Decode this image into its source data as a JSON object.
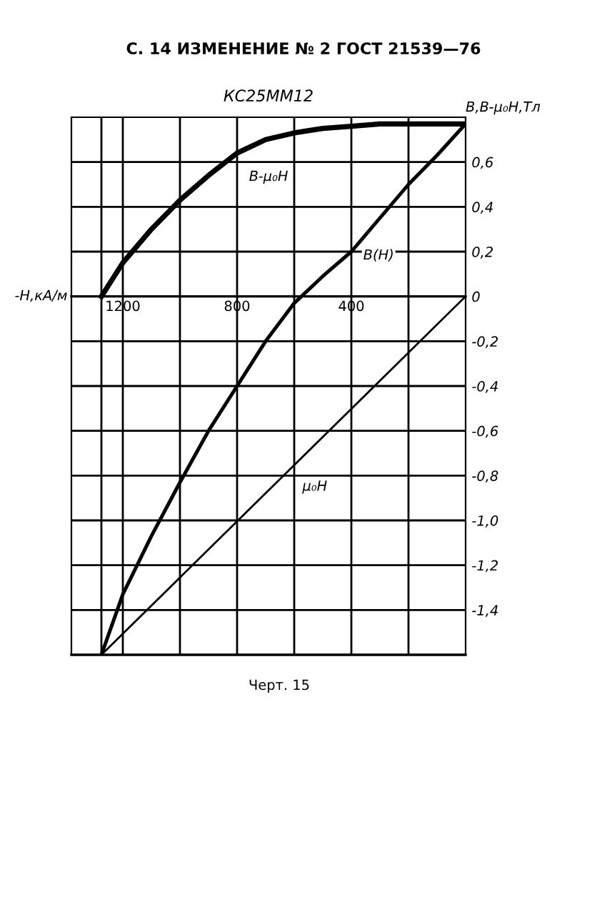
{
  "chart_data": {
    "type": "line",
    "title": "КС25ММ12",
    "xlabel": "-H,кА/м",
    "ylabel": "B,B-μ₀H,Тл",
    "annotations": [
      "С. 14 ИЗМЕНЕНИЕ № 2 ГОСТ 21539—76",
      "Черт. 15"
    ],
    "xlim": [
      1380,
      0
    ],
    "ylim": [
      -1.6,
      0.8
    ],
    "xticks": [
      {
        "value": 1275,
        "label": null
      },
      1200,
      {
        "value": 1000,
        "label": null
      },
      800,
      {
        "value": 600,
        "label": null
      },
      400,
      {
        "value": 200,
        "label": null
      }
    ],
    "yticks": [
      {
        "value": -1.4,
        "label": "-1,4"
      },
      {
        "value": -1.2,
        "label": "-1,2"
      },
      {
        "value": -1.0,
        "label": "-1,0"
      },
      {
        "value": -0.8,
        "label": "-0,8"
      },
      {
        "value": -0.6,
        "label": "-0,6"
      },
      {
        "value": -0.4,
        "label": "-0,4"
      },
      {
        "value": -0.2,
        "label": "-0,2"
      },
      0,
      {
        "value": 0.2,
        "label": "0,2"
      },
      {
        "value": 0.4,
        "label": "0,4"
      },
      {
        "value": 0.6,
        "label": "0,6"
      }
    ],
    "grid": true,
    "legend": false,
    "marker": "none",
    "line_style": "solid",
    "series": [
      {
        "name": "B-μ₀H",
        "color": "#000000",
        "x": [
          1275,
          1200,
          1100,
          1000,
          900,
          800,
          700,
          600,
          500,
          400,
          300,
          200,
          100,
          0
        ],
        "values": [
          0,
          0.15,
          0.3,
          0.43,
          0.54,
          0.64,
          0.7,
          0.73,
          0.75,
          0.76,
          0.77,
          0.77,
          0.77,
          0.77
        ]
      },
      {
        "name": "B(H)",
        "color": "#000000",
        "x": [
          1275,
          1200,
          1100,
          1000,
          900,
          800,
          700,
          600,
          500,
          400,
          300,
          200,
          100,
          0
        ],
        "values": [
          -1.6,
          -1.33,
          -1.07,
          -0.83,
          -0.6,
          -0.4,
          -0.2,
          -0.03,
          0.09,
          0.2,
          0.35,
          0.5,
          0.63,
          0.77
        ]
      },
      {
        "name": "μ₀H",
        "color": "#000000",
        "x": [
          1275,
          0
        ],
        "values": [
          -1.6,
          0
        ]
      }
    ]
  }
}
